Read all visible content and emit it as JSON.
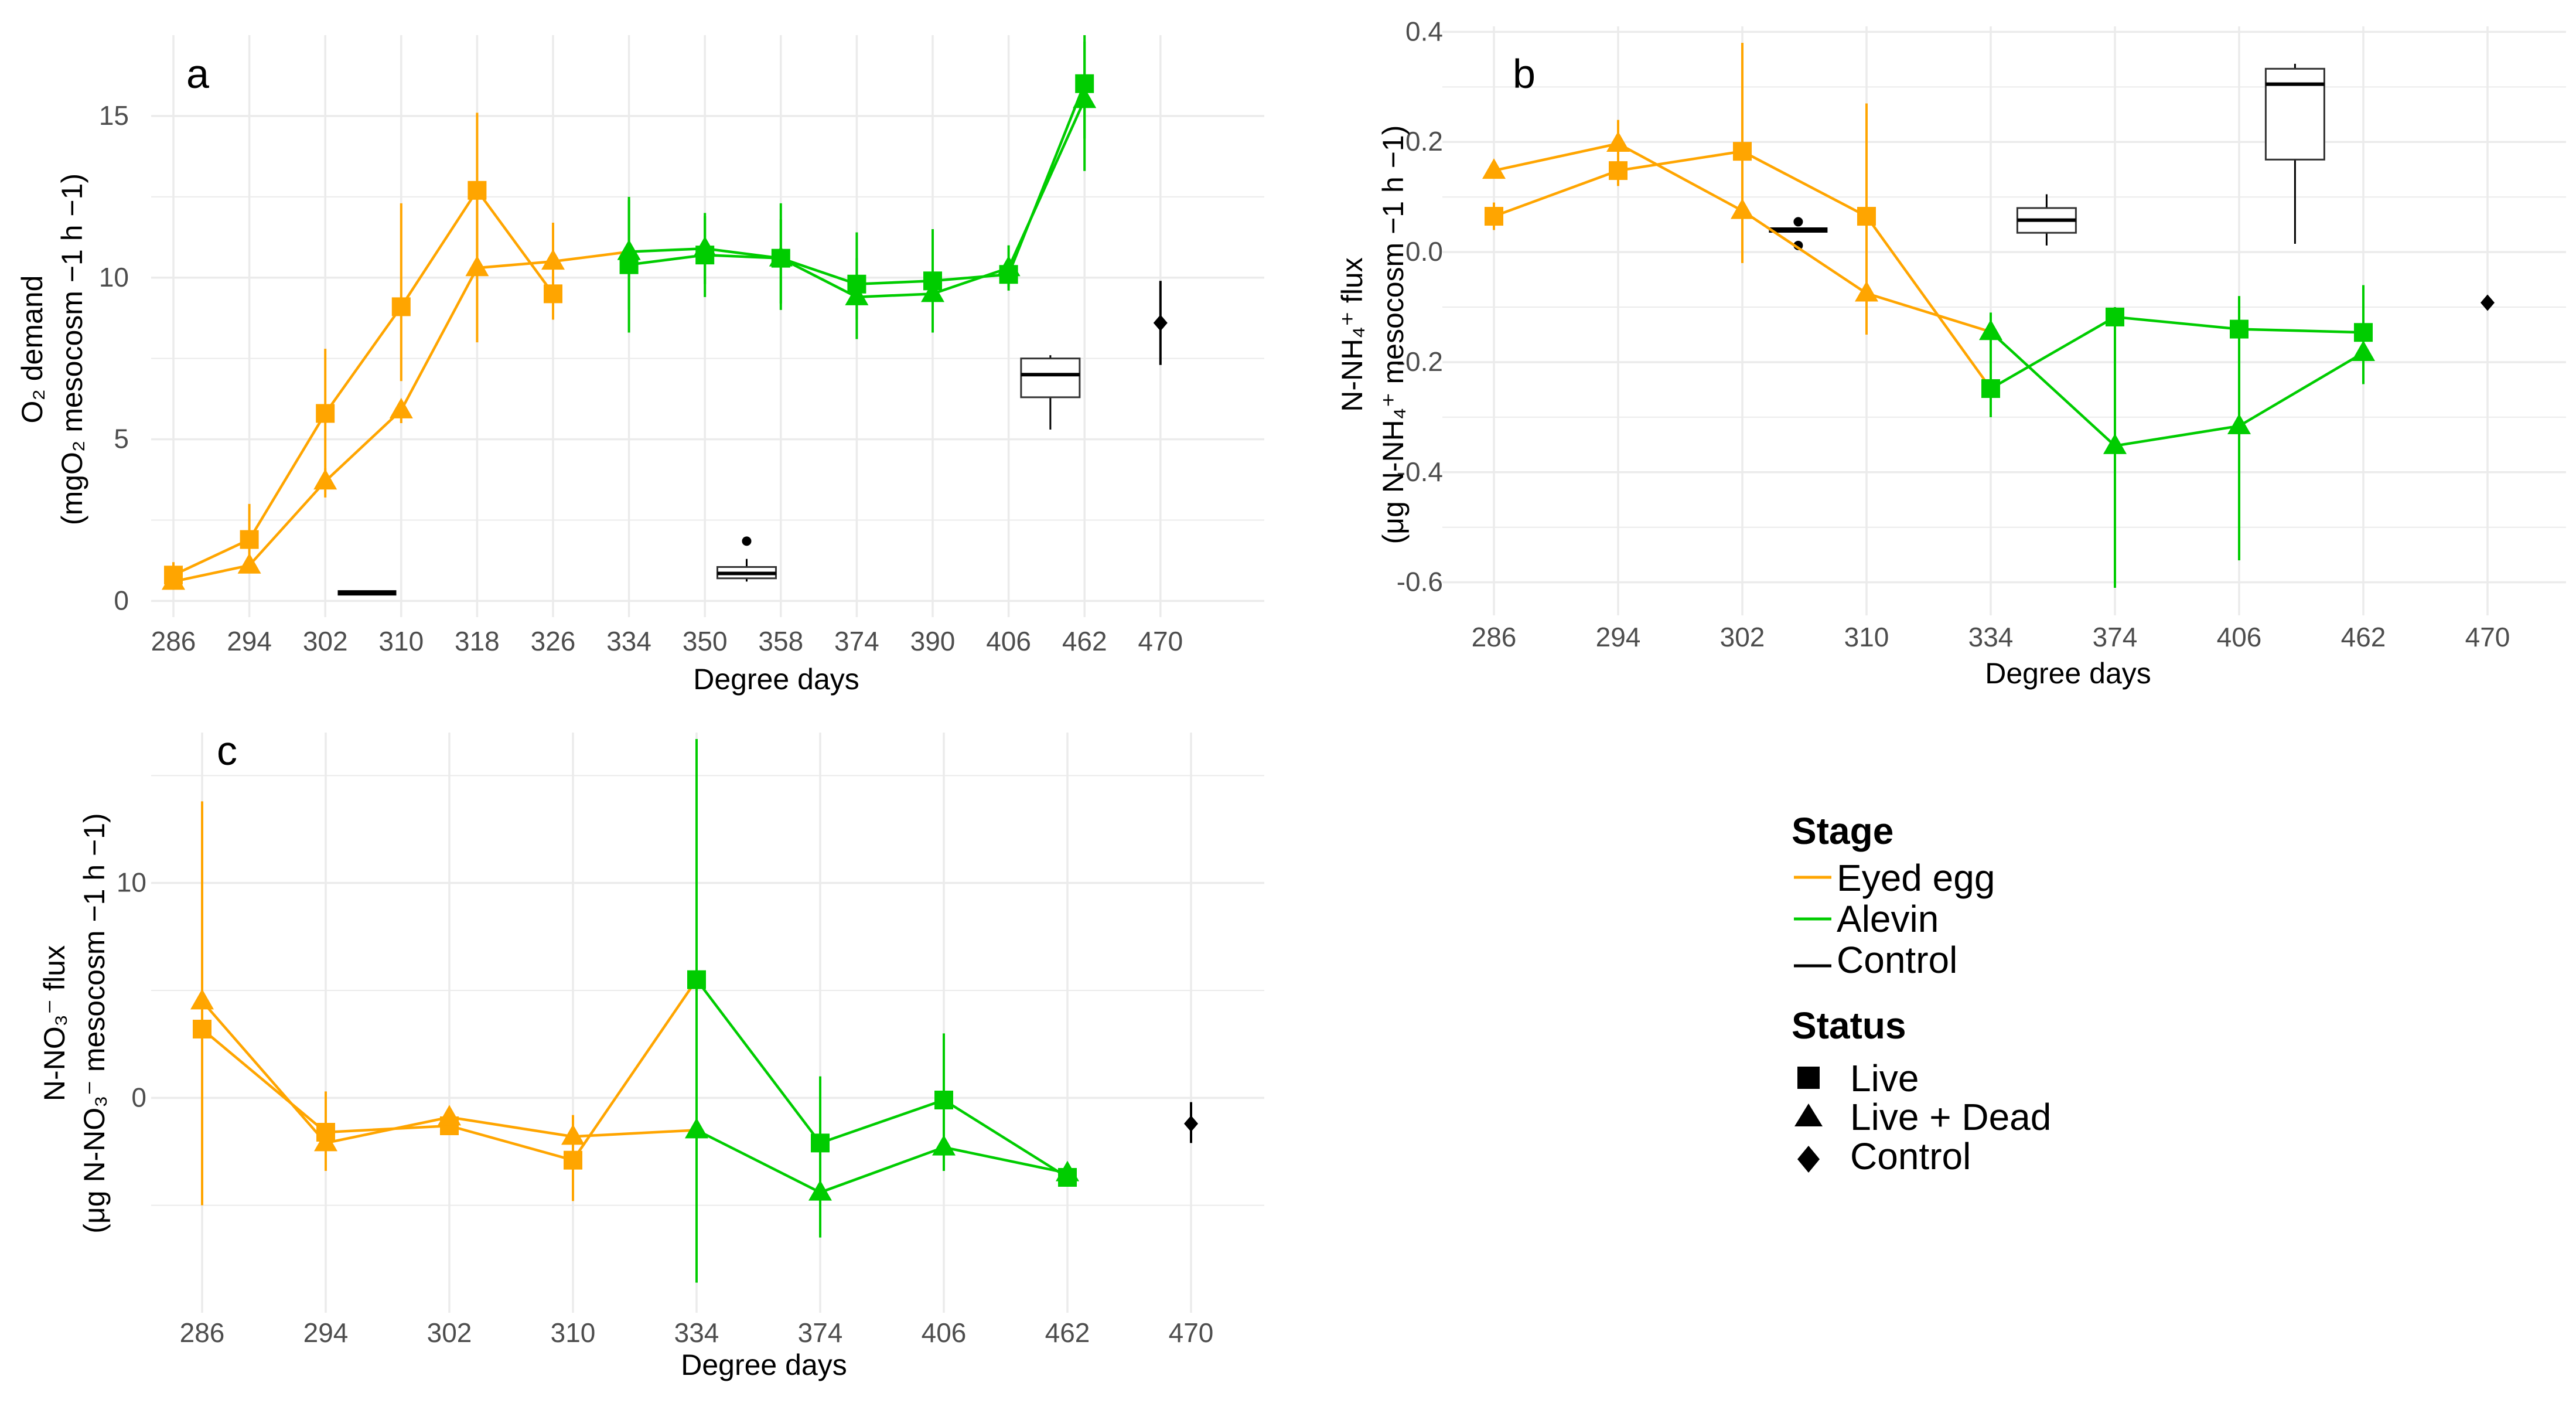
{
  "colors": {
    "eyed_egg": "#FFA500",
    "alevin": "#00CC00",
    "control": "#000000",
    "grid": "#EBEBEB"
  },
  "legend": {
    "stage_title": "Stage",
    "stage_items": [
      "Eyed egg",
      "Alevin",
      "Control"
    ],
    "status_title": "Status",
    "status_items": [
      "Live",
      "Live + Dead",
      "Control"
    ]
  },
  "chart_data": [
    {
      "panel": "a",
      "type": "line",
      "xlabel": "Degree days",
      "ylabel_line1": "O₂ demand",
      "ylabel_line2": "(mgO₂ mesocosm −1 h −1)",
      "categories": [
        "286",
        "294",
        "302",
        "310",
        "318",
        "326",
        "334",
        "350",
        "358",
        "374",
        "390",
        "406",
        "462",
        "470"
      ],
      "ylim": [
        -0.5,
        17.5
      ],
      "yticks": [
        0,
        5,
        10,
        15
      ],
      "series": [
        {
          "name": "Eyed egg - Live",
          "stage": "eyed_egg",
          "shape": "square",
          "points": [
            {
              "x": 0,
              "y": 0.8,
              "lo": 0.4,
              "hi": 1.2
            },
            {
              "x": 1,
              "y": 1.9,
              "lo": 1.1,
              "hi": 3.0
            },
            {
              "x": 2,
              "y": 5.8,
              "lo": 4.0,
              "hi": 7.8
            },
            {
              "x": 3,
              "y": 9.1,
              "lo": 6.8,
              "hi": 12.3
            },
            {
              "x": 4,
              "y": 12.7,
              "lo": 10.5,
              "hi": 15.1
            },
            {
              "x": 5,
              "y": 9.5,
              "lo": 8.7,
              "hi": 10.4
            }
          ]
        },
        {
          "name": "Eyed egg - Live + Dead",
          "stage": "eyed_egg",
          "shape": "triangle",
          "points": [
            {
              "x": 0,
              "y": 0.6,
              "lo": 0.4,
              "hi": 0.9
            },
            {
              "x": 1,
              "y": 1.1,
              "lo": 0.9,
              "hi": 1.4
            },
            {
              "x": 2,
              "y": 3.7,
              "lo": 3.2,
              "hi": 4.1
            },
            {
              "x": 3,
              "y": 5.9,
              "lo": 5.5,
              "hi": 6.2
            },
            {
              "x": 4,
              "y": 10.3,
              "lo": 8.0,
              "hi": 12.6
            },
            {
              "x": 5,
              "y": 10.5,
              "lo": 9.1,
              "hi": 11.7
            },
            {
              "x": 6,
              "y": 10.8
            }
          ]
        },
        {
          "name": "Alevin - Live",
          "stage": "alevin",
          "shape": "square",
          "points": [
            {
              "x": 6,
              "y": 10.4,
              "lo": 8.3,
              "hi": 12.4
            },
            {
              "x": 7,
              "y": 10.7,
              "lo": 9.4,
              "hi": 12.0
            },
            {
              "x": 8,
              "y": 10.6,
              "lo": 9.0,
              "hi": 12.3
            },
            {
              "x": 9,
              "y": 9.8,
              "lo": 8.7,
              "hi": 11.4
            },
            {
              "x": 10,
              "y": 9.9,
              "lo": 8.6,
              "hi": 11.5
            },
            {
              "x": 11,
              "y": 10.1,
              "lo": 9.6,
              "hi": 10.6
            },
            {
              "x": 12,
              "y": 16.0,
              "lo": 14.3,
              "hi": 17.5
            }
          ]
        },
        {
          "name": "Alevin - Live + Dead",
          "stage": "alevin",
          "shape": "triangle",
          "points": [
            {
              "x": 6,
              "y": 10.8,
              "lo": 9.0,
              "hi": 12.5
            },
            {
              "x": 7,
              "y": 10.9,
              "lo": 9.8,
              "hi": 11.9
            },
            {
              "x": 8,
              "y": 10.6,
              "lo": 9.2,
              "hi": 11.8
            },
            {
              "x": 9,
              "y": 9.4,
              "lo": 8.1,
              "hi": 10.6
            },
            {
              "x": 10,
              "y": 9.5,
              "lo": 8.3,
              "hi": 10.7
            },
            {
              "x": 11,
              "y": 10.3,
              "lo": 9.7,
              "hi": 11.0
            },
            {
              "x": 12,
              "y": 15.5,
              "lo": 13.3,
              "hi": 17.3
            }
          ]
        }
      ],
      "boxes": [
        {
          "x": 2.55,
          "min": 0.25,
          "q1": 0.25,
          "median": 0.25,
          "q3": 0.25,
          "max": 0.25
        },
        {
          "x": 7.55,
          "min": 0.6,
          "q1": 0.7,
          "median": 0.85,
          "q3": 1.05,
          "max": 1.3,
          "outliers": [
            1.85
          ]
        },
        {
          "x": 11.55,
          "min": 5.3,
          "q1": 6.3,
          "median": 7.0,
          "q3": 7.5,
          "max": 7.6
        }
      ],
      "control_points": [
        {
          "x": 13,
          "y": 8.6,
          "lo": 7.3,
          "hi": 9.9
        }
      ]
    },
    {
      "panel": "b",
      "type": "line",
      "xlabel": "Degree days",
      "ylabel_line1": "N-NH₄⁺ flux",
      "ylabel_line2": "(μg N-NH₄⁺ mesocosm −1 h −1)",
      "categories": [
        "286",
        "294",
        "302",
        "310",
        "334",
        "374",
        "406",
        "462",
        "470"
      ],
      "ylim": [
        -0.66,
        0.41
      ],
      "yticks": [
        -0.6,
        -0.4,
        -0.2,
        0.0,
        0.2,
        0.4
      ],
      "ytick_labels": [
        "-0.6",
        "-0.4",
        "-0.2",
        "0.0",
        "0.2",
        "0.4"
      ],
      "series": [
        {
          "name": "Eyed egg - Live",
          "stage": "eyed_egg",
          "shape": "square",
          "points": [
            {
              "x": 0,
              "y": 0.065,
              "lo": 0.04,
              "hi": 0.09
            },
            {
              "x": 1,
              "y": 0.148,
              "lo": 0.12,
              "hi": 0.18
            },
            {
              "x": 2,
              "y": 0.183,
              "lo": 0.0,
              "hi": 0.38
            },
            {
              "x": 3,
              "y": 0.065,
              "lo": -0.14,
              "hi": 0.27
            },
            {
              "x": 4,
              "y": -0.248
            }
          ]
        },
        {
          "name": "Eyed egg - Live + Dead",
          "stage": "eyed_egg",
          "shape": "triangle",
          "points": [
            {
              "x": 0,
              "y": 0.148
            },
            {
              "x": 1,
              "y": 0.197,
              "lo": 0.17,
              "hi": 0.24
            },
            {
              "x": 2,
              "y": 0.075,
              "lo": -0.02,
              "hi": 0.17
            },
            {
              "x": 3,
              "y": -0.075,
              "lo": -0.15,
              "hi": -0.01
            },
            {
              "x": 4,
              "y": -0.145
            }
          ]
        },
        {
          "name": "Alevin - Live",
          "stage": "alevin",
          "shape": "square",
          "points": [
            {
              "x": 4,
              "y": -0.248,
              "lo": -0.3,
              "hi": -0.2
            },
            {
              "x": 5,
              "y": -0.118,
              "lo": -0.14,
              "hi": -0.1
            },
            {
              "x": 6,
              "y": -0.14,
              "lo": -0.2,
              "hi": -0.08
            },
            {
              "x": 7,
              "y": -0.146,
              "lo": -0.24,
              "hi": -0.06
            }
          ]
        },
        {
          "name": "Alevin - Live + Dead",
          "stage": "alevin",
          "shape": "triangle",
          "points": [
            {
              "x": 4,
              "y": -0.145,
              "lo": -0.2,
              "hi": -0.11
            },
            {
              "x": 5,
              "y": -0.352,
              "lo": -0.61,
              "hi": -0.1
            },
            {
              "x": 6,
              "y": -0.316,
              "lo": -0.56,
              "hi": -0.08
            },
            {
              "x": 7,
              "y": -0.183,
              "lo": -0.24,
              "hi": -0.12
            }
          ]
        }
      ],
      "boxes": [
        {
          "x": 2.45,
          "min": 0.04,
          "q1": 0.04,
          "median": 0.04,
          "q3": 0.04,
          "max": 0.04,
          "outliers": [
            0.055,
            0.012
          ]
        },
        {
          "x": 4.45,
          "min": 0.012,
          "q1": 0.035,
          "median": 0.058,
          "q3": 0.08,
          "max": 0.105
        },
        {
          "x": 6.45,
          "min": 0.015,
          "q1": 0.168,
          "median": 0.305,
          "q3": 0.333,
          "max": 0.342
        }
      ],
      "control_points": [
        {
          "x": 8,
          "y": -0.092
        }
      ]
    },
    {
      "panel": "c",
      "type": "line",
      "xlabel": "Degree days",
      "ylabel_line1": "N-NO₃⁻ flux",
      "ylabel_line2": "(μg N-NO₃⁻ mesocosm −1 h −1)",
      "categories": [
        "286",
        "294",
        "302",
        "310",
        "334",
        "374",
        "406",
        "462",
        "470"
      ],
      "ylim": [
        -10,
        17
      ],
      "yticks": [
        0,
        10
      ],
      "series": [
        {
          "name": "Eyed egg - Live",
          "stage": "eyed_egg",
          "shape": "square",
          "points": [
            {
              "x": 0,
              "y": 3.2,
              "lo": 1.5,
              "hi": 5.0
            },
            {
              "x": 1,
              "y": -1.6,
              "lo": -3.0,
              "hi": 0.3
            },
            {
              "x": 2,
              "y": -1.3
            },
            {
              "x": 3,
              "y": -2.9,
              "lo": -4.8,
              "hi": -1.1
            },
            {
              "x": 4,
              "y": 5.5
            }
          ]
        },
        {
          "name": "Eyed egg - Live + Dead",
          "stage": "eyed_egg",
          "shape": "triangle",
          "points": [
            {
              "x": 0,
              "y": 4.5,
              "lo": -5.0,
              "hi": 13.8
            },
            {
              "x": 1,
              "y": -2.1,
              "lo": -3.4,
              "hi": -0.9
            },
            {
              "x": 2,
              "y": -0.9
            },
            {
              "x": 3,
              "y": -1.8,
              "lo": -2.8,
              "hi": -0.8
            },
            {
              "x": 4,
              "y": -1.5
            }
          ]
        },
        {
          "name": "Alevin - Live",
          "stage": "alevin",
          "shape": "square",
          "points": [
            {
              "x": 4,
              "y": 5.5,
              "lo": -4.0,
              "hi": 15.0
            },
            {
              "x": 5,
              "y": -2.1,
              "lo": -4.5,
              "hi": 1.0
            },
            {
              "x": 6,
              "y": -0.1,
              "lo": -2.8,
              "hi": 3.0
            },
            {
              "x": 7,
              "y": -3.7
            }
          ]
        },
        {
          "name": "Alevin - Live + Dead",
          "stage": "alevin",
          "shape": "triangle",
          "points": [
            {
              "x": 4,
              "y": -1.5,
              "lo": -8.6,
              "hi": 16.7
            },
            {
              "x": 5,
              "y": -4.4,
              "lo": -6.5,
              "hi": -2.0
            },
            {
              "x": 6,
              "y": -2.3,
              "lo": -3.4,
              "hi": -1.2
            },
            {
              "x": 7,
              "y": -3.5
            }
          ]
        }
      ],
      "control_points": [
        {
          "x": 8,
          "y": -1.2,
          "lo": -2.1,
          "hi": -0.2
        }
      ]
    }
  ]
}
